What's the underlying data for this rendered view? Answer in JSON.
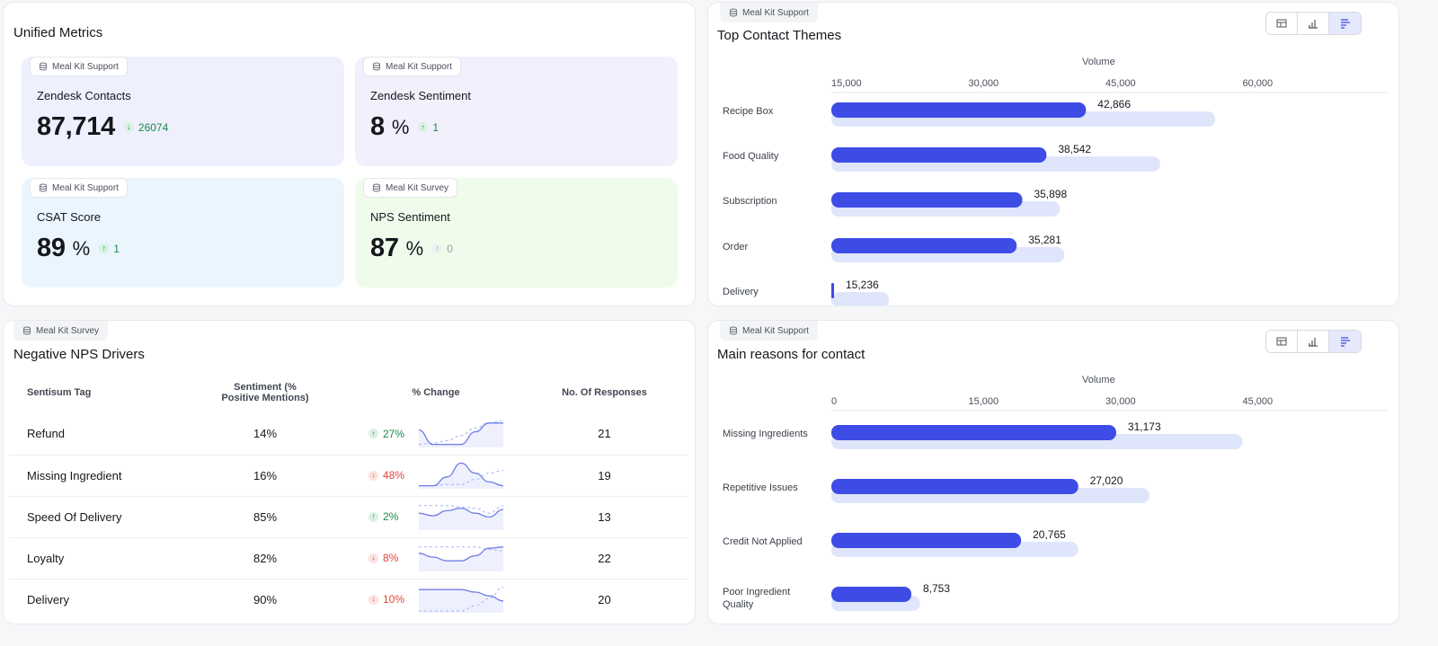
{
  "unified": {
    "title": "Unified Metrics",
    "cards": [
      {
        "source": "Meal Kit Support",
        "label": "Zendesk Contacts",
        "value": "87,714",
        "unit": "",
        "delta": "26074",
        "direction": "down",
        "tone": "g",
        "color": "#eef0fd"
      },
      {
        "source": "Meal Kit Support",
        "label": "Zendesk Sentiment",
        "value": "8",
        "unit": "%",
        "delta": "1",
        "direction": "up",
        "tone": "g",
        "color": "#f2f0fd"
      },
      {
        "source": "Meal Kit Support",
        "label": "CSAT Score",
        "value": "89",
        "unit": "%",
        "delta": "1",
        "direction": "up",
        "tone": "g",
        "color": "#ebf5fd"
      },
      {
        "source": "Meal Kit Survey",
        "label": "NPS Sentiment",
        "value": "87",
        "unit": "%",
        "delta": "0",
        "direction": "up",
        "tone": "n",
        "color": "#effcec"
      }
    ]
  },
  "themes": {
    "source": "Meal Kit Support",
    "title": "Top Contact Themes"
  },
  "reasons": {
    "source": "Meal Kit Support",
    "title": "Main reasons for contact"
  },
  "nps": {
    "source": "Meal Kit Survey",
    "title": "Negative NPS Drivers",
    "headers": [
      "Sentisum Tag",
      "Sentiment (% Positive Mentions)",
      "% Change",
      "No. Of Responses"
    ],
    "rows": [
      {
        "tag": "Refund",
        "sentiment": "14%",
        "change": "27%",
        "direction": "up",
        "tone": "g",
        "responses": "21",
        "trend": [
          0.62,
          0.05,
          0.05,
          0.05,
          0.55,
          0.9,
          0.9
        ],
        "baseline": [
          0.05,
          0.1,
          0.2,
          0.4,
          0.7,
          0.9,
          1.0
        ]
      },
      {
        "tag": "Missing Ingredient",
        "sentiment": "16%",
        "change": "48%",
        "direction": "down",
        "tone": "r",
        "responses": "19",
        "trend": [
          0.05,
          0.05,
          0.4,
          0.95,
          0.55,
          0.2,
          0.05
        ],
        "baseline": [
          0.05,
          0.05,
          0.1,
          0.1,
          0.3,
          0.55,
          0.65
        ]
      },
      {
        "tag": "Speed Of Delivery",
        "sentiment": "85%",
        "change": "2%",
        "direction": "up",
        "tone": "g",
        "responses": "13",
        "trend": [
          0.6,
          0.5,
          0.7,
          0.8,
          0.6,
          0.45,
          0.75
        ],
        "baseline": [
          0.9,
          0.9,
          0.9,
          0.85,
          0.8,
          0.6,
          0.9
        ]
      },
      {
        "tag": "Loyalty",
        "sentiment": "82%",
        "change": "8%",
        "direction": "down",
        "tone": "r",
        "responses": "22",
        "trend": [
          0.65,
          0.5,
          0.35,
          0.35,
          0.55,
          0.85,
          0.9
        ],
        "baseline": [
          0.9,
          0.9,
          0.9,
          0.9,
          0.9,
          0.8,
          0.75
        ]
      },
      {
        "tag": "Delivery",
        "sentiment": "90%",
        "change": "10%",
        "direction": "down",
        "tone": "r",
        "responses": "20",
        "trend": [
          0.85,
          0.85,
          0.85,
          0.85,
          0.75,
          0.6,
          0.4
        ],
        "baseline": [
          0.0,
          0.0,
          0.0,
          0.0,
          0.2,
          0.5,
          0.95
        ]
      }
    ]
  },
  "chart_data": [
    {
      "type": "bar",
      "title": "Top Contact Themes",
      "xlabel": "Volume",
      "categories": [
        "Recipe Box",
        "Food Quality",
        "Subscription",
        "Order",
        "Delivery"
      ],
      "values": [
        42866,
        38542,
        35898,
        35281,
        15236
      ],
      "value_labels": [
        "42,866",
        "38,542",
        "35,898",
        "35,281",
        "15,236"
      ],
      "background_values": [
        57000,
        51000,
        40000,
        40500,
        21300
      ],
      "ticks": [
        15000,
        30000,
        45000,
        60000
      ],
      "tick_labels": [
        "15,000",
        "30,000",
        "45,000",
        "60,000"
      ],
      "xlim": [
        15000,
        75000
      ]
    },
    {
      "type": "bar",
      "title": "Main reasons for contact",
      "xlabel": "Volume",
      "categories": [
        "Missing Ingredients",
        "Repetitive Issues",
        "Credit Not Applied",
        "Poor Ingredient\nQuality"
      ],
      "values": [
        31173,
        27020,
        20765,
        8753
      ],
      "value_labels": [
        "31,173",
        "27,020",
        "20,765",
        "8,753"
      ],
      "background_values": [
        45000,
        34800,
        27000,
        9700
      ],
      "ticks": [
        0,
        15000,
        30000,
        45000
      ],
      "tick_labels": [
        "0",
        "15,000",
        "30,000",
        "45,000"
      ],
      "xlim": [
        0,
        60000
      ]
    }
  ],
  "colors": {
    "bar": "#3e4ce6",
    "bar_bg": "#dfe6fc",
    "accent": "#3e4ce6"
  }
}
